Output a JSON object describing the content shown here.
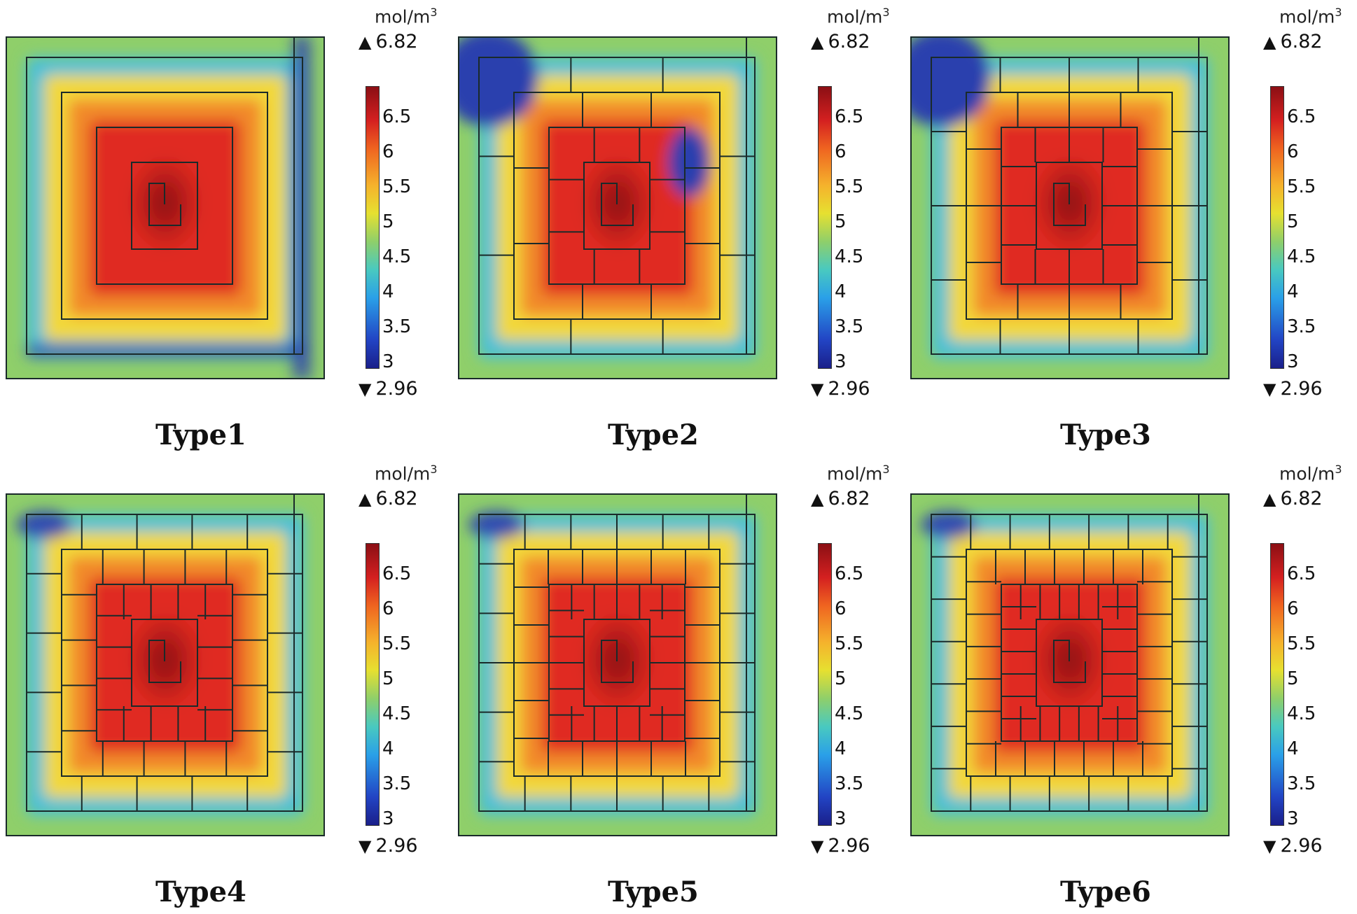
{
  "unit": "mol/m",
  "unit_exponent": "3",
  "max_value": "6.82",
  "min_value": "2.96",
  "ticks": [
    "6.5",
    "6",
    "5.5",
    "5",
    "4.5",
    "4",
    "3.5",
    "3"
  ],
  "panels": [
    {
      "caption": "Type1",
      "connectors": 0,
      "variant": "type1"
    },
    {
      "caption": "Type2",
      "connectors": 1,
      "variant": "type2"
    },
    {
      "caption": "Type3",
      "connectors": 2,
      "variant": "type3"
    },
    {
      "caption": "Type4",
      "connectors": 3,
      "variant": "type4"
    },
    {
      "caption": "Type5",
      "connectors": 4,
      "variant": "type5"
    },
    {
      "caption": "Type6",
      "connectors": 5,
      "variant": "type6"
    }
  ],
  "colors": {
    "deep_red": "#8b0f14",
    "red": "#e02a20",
    "orange": "#f28a2a",
    "yellow": "#f2d83a",
    "green": "#8fcf6a",
    "cyan": "#49c0d8",
    "blue": "#2c3fae",
    "frame": "#1a2a2a"
  }
}
